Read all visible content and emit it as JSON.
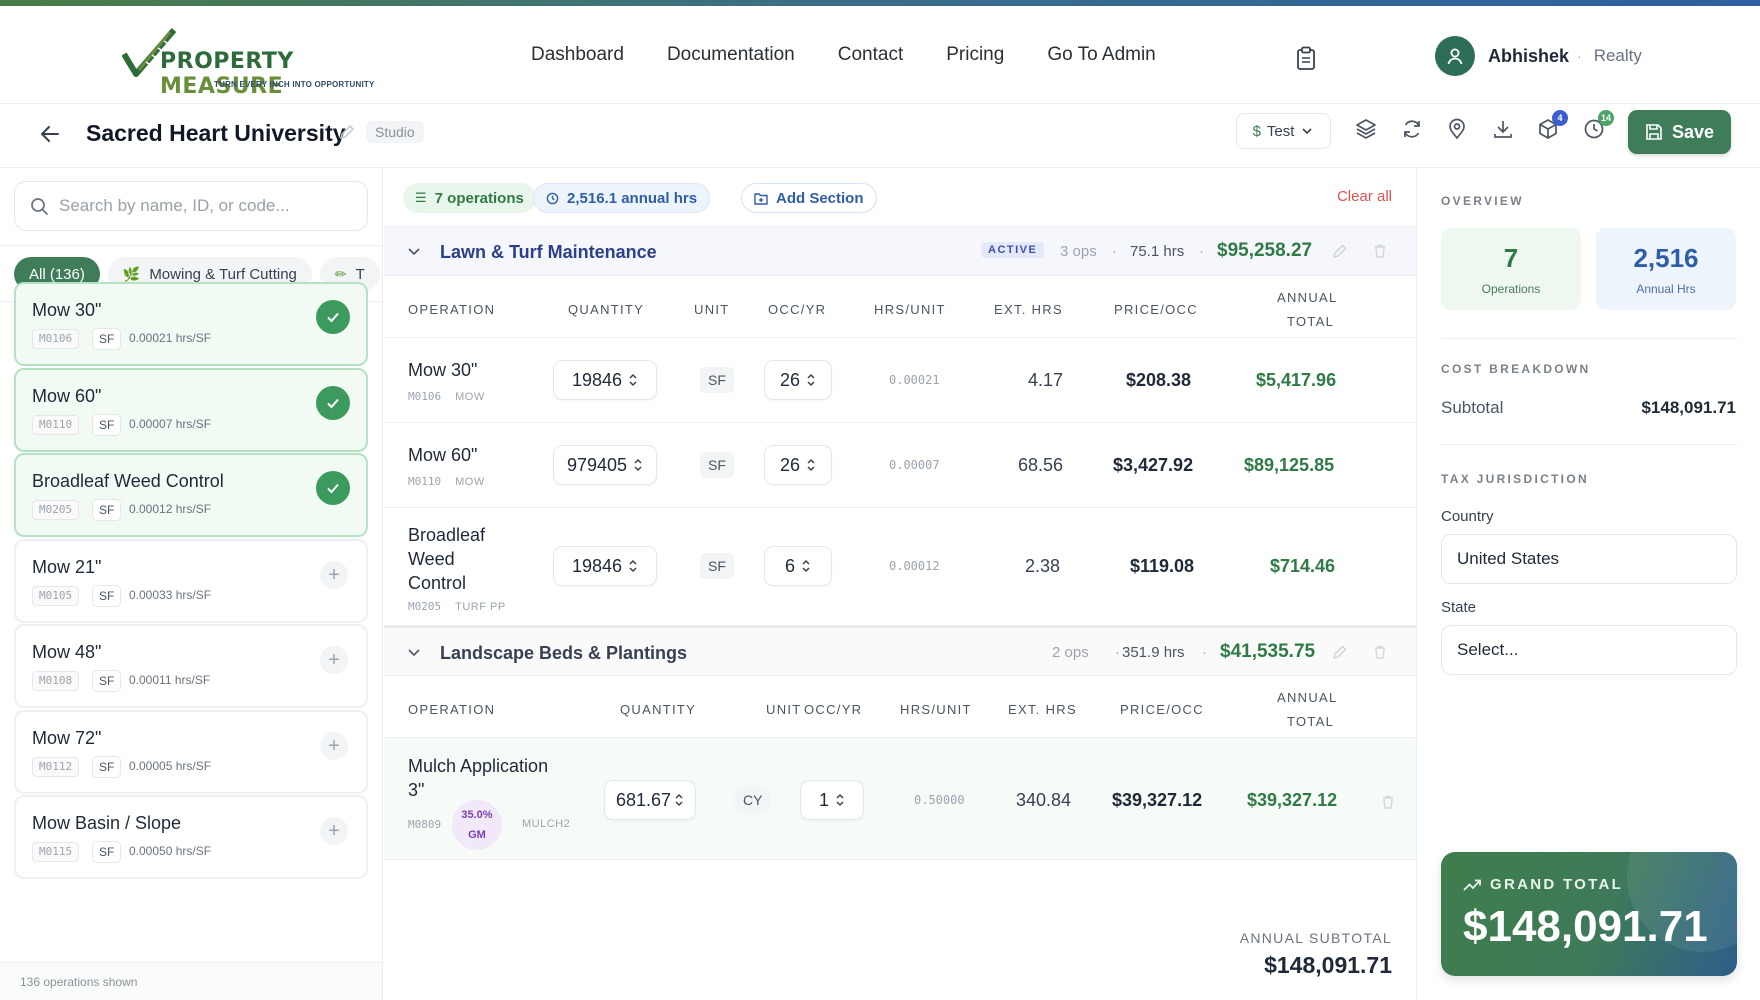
{
  "brand": {
    "name_part1": "PROPERTY",
    "name_part2": "MEASURE",
    "tagline": "TURN EVERY INCH INTO OPPORTUNITY"
  },
  "nav": {
    "links": [
      "Dashboard",
      "Documentation",
      "Contact",
      "Pricing",
      "Go To Admin"
    ],
    "icons": [
      "clipboard-icon"
    ]
  },
  "user": {
    "name": "Abhishek",
    "org": "Realty"
  },
  "project": {
    "title": "Sacred Heart University",
    "mode_badge": "Studio",
    "pricing_select": "Test",
    "pricing_symbol": "$",
    "toolbar_badges": {
      "packages": "4",
      "history": "14"
    },
    "save_label": "Save"
  },
  "left": {
    "search_placeholder": "Search by name, ID, or code...",
    "chips": [
      {
        "label": "All",
        "count": "(136)"
      },
      {
        "label": "Mowing & Turf Cutting"
      },
      {
        "label": "T"
      }
    ],
    "operations": [
      {
        "name": "Mow 30\"",
        "code": "M0106",
        "unit": "SF",
        "rate": "0.00021 hrs/SF",
        "selected": true
      },
      {
        "name": "Mow 60\"",
        "code": "M0110",
        "unit": "SF",
        "rate": "0.00007 hrs/SF",
        "selected": true
      },
      {
        "name": "Broadleaf Weed Control",
        "code": "M0205",
        "unit": "SF",
        "rate": "0.00012 hrs/SF",
        "selected": true
      },
      {
        "name": "Mow 21\"",
        "code": "M0105",
        "unit": "SF",
        "rate": "0.00033 hrs/SF",
        "selected": false
      },
      {
        "name": "Mow 48\"",
        "code": "M0108",
        "unit": "SF",
        "rate": "0.00011 hrs/SF",
        "selected": false
      },
      {
        "name": "Mow 72\"",
        "code": "M0112",
        "unit": "SF",
        "rate": "0.00005 hrs/SF",
        "selected": false
      },
      {
        "name": "Mow Basin / Slope",
        "code": "M0115",
        "unit": "SF",
        "rate": "0.00050 hrs/SF",
        "selected": false
      }
    ],
    "footer": "136 operations shown"
  },
  "main": {
    "ops_pill": "7 operations",
    "hrs_pill": "2,516.1 annual hrs",
    "add_section": "Add Section",
    "clear_all": "Clear all",
    "columns": {
      "operation": "OPERATION",
      "quantity": "QUANTITY",
      "unit": "UNIT",
      "occ": "OCC/YR",
      "hrs_unit": "HRS/UNIT",
      "ext_hrs": "EXT. HRS",
      "price_occ": "PRICE/OCC",
      "annual_1": "ANNUAL",
      "annual_2": "TOTAL"
    },
    "sections": [
      {
        "title": "Lawn & Turf Maintenance",
        "status": "ACTIVE",
        "ops": "3 ops",
        "hrs": "75.1 hrs",
        "total": "$95,258.27",
        "rows": [
          {
            "name": "Mow 30\"",
            "code": "M0106",
            "category": "MOW",
            "quantity": "19846",
            "unit": "SF",
            "occ": "26",
            "hrs_unit": "0.00021",
            "ext_hrs": "4.17",
            "price": "$208.38",
            "total": "$5,417.96"
          },
          {
            "name": "Mow 60\"",
            "code": "M0110",
            "category": "MOW",
            "quantity": "979405",
            "unit": "SF",
            "occ": "26",
            "hrs_unit": "0.00007",
            "ext_hrs": "68.56",
            "price": "$3,427.92",
            "total": "$89,125.85"
          },
          {
            "name_lines": [
              "Broadleaf",
              "Weed",
              "Control"
            ],
            "code": "M0205",
            "category": "TURF PP",
            "quantity": "19846",
            "unit": "SF",
            "occ": "6",
            "hrs_unit": "0.00012",
            "ext_hrs": "2.38",
            "price": "$119.08",
            "total": "$714.46"
          }
        ]
      },
      {
        "title": "Landscape Beds & Plantings",
        "ops": "2 ops",
        "hrs": "351.9 hrs",
        "total": "$41,535.75",
        "rows": [
          {
            "name_lines": [
              "Mulch Application",
              "3\""
            ],
            "code": "M0809",
            "gm_pct": "35.0%",
            "gm_lbl": "GM",
            "category": "MULCH2",
            "quantity": "681.67",
            "unit": "CY",
            "occ": "1",
            "hrs_unit": "0.50000",
            "ext_hrs": "340.84",
            "price": "$39,327.12",
            "total": "$39,327.12"
          }
        ]
      }
    ],
    "annual_subtotal_label": "ANNUAL SUBTOTAL",
    "annual_subtotal": "$148,091.71"
  },
  "right": {
    "overview_label": "OVERVIEW",
    "operations_count": "7",
    "operations_label": "Operations",
    "annual_hrs": "2,516",
    "annual_hrs_label": "Annual Hrs",
    "cost_breakdown_label": "COST BREAKDOWN",
    "subtotal_label": "Subtotal",
    "subtotal": "$148,091.71",
    "tax_label": "TAX JURISDICTION",
    "country_label": "Country",
    "country_value": "United States",
    "state_label": "State",
    "state_placeholder": "Select...",
    "grand_total_label": "GRAND TOTAL",
    "grand_total": "$148,091.71"
  },
  "colors": {
    "brand_green": "#3f7d5a",
    "accent_blue": "#2f5ea8",
    "total_green": "#2f7a45",
    "danger": "#d9534f"
  }
}
